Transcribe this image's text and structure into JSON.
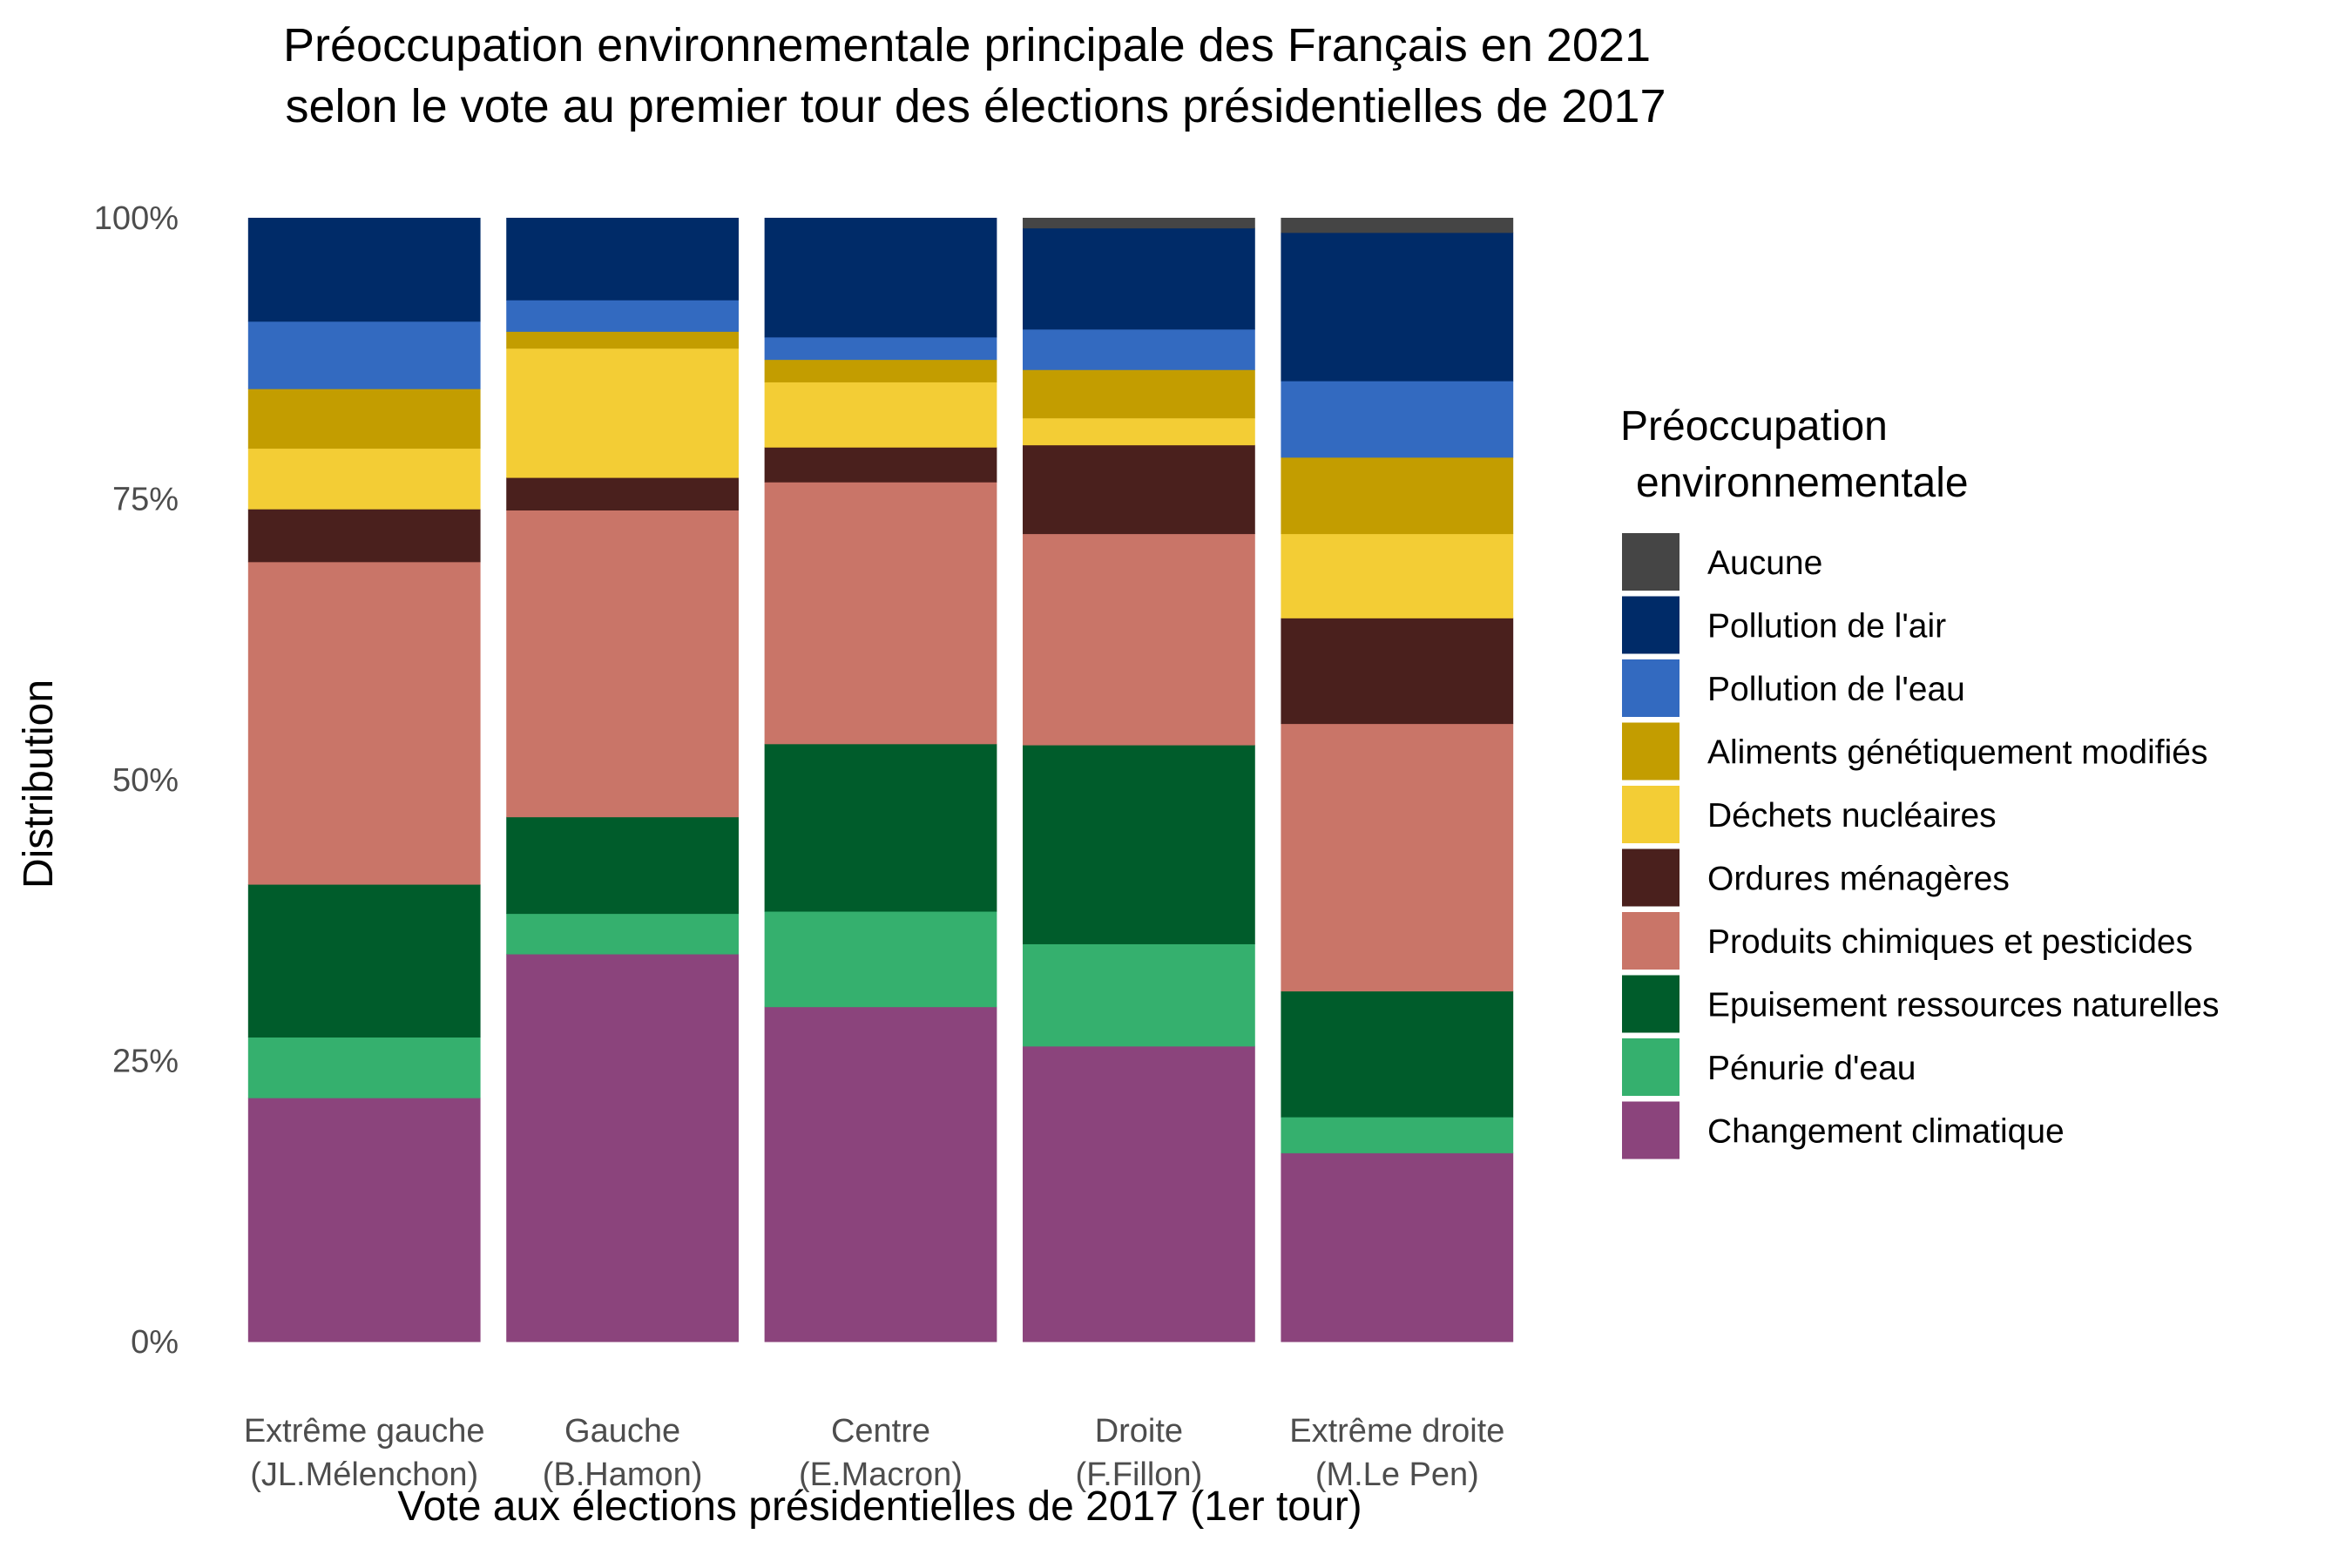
{
  "chart_data": {
    "type": "bar",
    "stacked": true,
    "normalized": true,
    "title": "Préoccupation environnementale principale des Français en 2021",
    "subtitle": "selon le vote au premier tour des élections présidentielles de 2017",
    "xlabel": "Vote aux élections présidentielles de 2017 (1er tour)",
    "ylabel": "Distribution",
    "ylim": [
      0,
      1
    ],
    "yticks": [
      "0%",
      "25%",
      "50%",
      "75%",
      "100%"
    ],
    "grid": false,
    "legend_title_line1": "Préoccupation",
    "legend_title_line2": "environnementale",
    "legend_position": "right",
    "categories": [
      {
        "line1": "Extrême gauche",
        "line2": "(JL.Mélenchon)"
      },
      {
        "line1": "Gauche",
        "line2": "(B.Hamon)"
      },
      {
        "line1": "Centre",
        "line2": "(E.Macron)"
      },
      {
        "line1": "Droite",
        "line2": "(F.Fillon)"
      },
      {
        "line1": "Extrême droite",
        "line2": "(M.Le Pen)"
      }
    ],
    "series": [
      {
        "name": "Changement climatique",
        "color": "#8b447c",
        "values": [
          21.7,
          34.5,
          29.8,
          26.3,
          16.8
        ]
      },
      {
        "name": "Pénurie d'eau",
        "color": "#35b06e",
        "values": [
          5.4,
          3.6,
          8.5,
          9.1,
          3.2
        ]
      },
      {
        "name": "Epuisement ressources naturelles",
        "color": "#005c2b",
        "values": [
          13.6,
          8.6,
          14.9,
          17.7,
          11.2
        ]
      },
      {
        "name": "Produits chimiques et pesticides",
        "color": "#c97568",
        "values": [
          28.7,
          27.3,
          23.3,
          18.8,
          23.8
        ]
      },
      {
        "name": "Ordures ménagères",
        "color": "#4a201d",
        "values": [
          4.7,
          2.9,
          3.1,
          7.9,
          9.4
        ]
      },
      {
        "name": "Déchets nucléaires",
        "color": "#f3cd35",
        "values": [
          5.4,
          11.5,
          5.8,
          2.4,
          7.5
        ]
      },
      {
        "name": "Aliments génétiquement modifiés",
        "color": "#c39d00",
        "values": [
          5.3,
          1.5,
          2.0,
          4.3,
          6.8
        ]
      },
      {
        "name": "Pollution de l'eau",
        "color": "#336ac0",
        "values": [
          6.0,
          2.8,
          2.0,
          3.6,
          6.8
        ]
      },
      {
        "name": "Pollution de l'air",
        "color": "#002b68",
        "values": [
          9.2,
          7.3,
          10.6,
          9.0,
          13.2
        ]
      },
      {
        "name": "Aucune",
        "color": "#454545",
        "values": [
          0.0,
          0.0,
          0.0,
          0.9,
          1.3
        ]
      }
    ]
  }
}
